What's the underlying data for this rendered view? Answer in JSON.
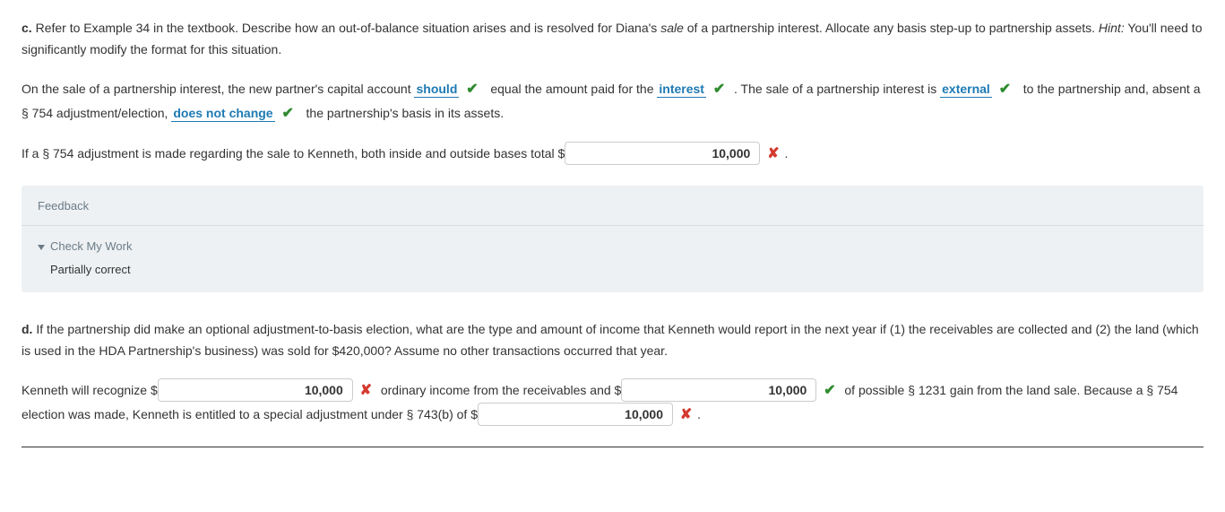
{
  "c": {
    "label": "c.",
    "prompt_start": "Refer to Example 34 in the textbook. Describe how an out-of-balance situation arises and is resolved for Diana's ",
    "sale_word": "sale",
    "prompt_mid": " of a partnership interest. Allocate any basis step-up to partnership assets. ",
    "hint_label": "Hint:",
    "hint_text": " You'll need to significantly modify the format for this situation.",
    "ans": {
      "t1": "On the sale of a partnership interest, the new partner's capital account ",
      "dd1": "should",
      "t2": "equal the amount paid for the ",
      "dd2": "interest",
      "t3": ". The sale of a partnership interest is ",
      "dd3": "external",
      "t4": "to the partnership and, absent a § 754 adjustment/election, ",
      "dd4": "does not change",
      "t5": "the partnership's basis in its assets."
    },
    "line2": {
      "t1": "If a § 754 adjustment is made regarding the sale to Kenneth, both inside and outside bases total $",
      "val": "10,000",
      "period": "."
    }
  },
  "feedback": {
    "title": "Feedback",
    "check": "Check My Work",
    "status": "Partially correct"
  },
  "d": {
    "label": "d.",
    "prompt": "If the partnership did make an optional adjustment-to-basis election, what are the type and amount of income that Kenneth would report in the next year if (1) the receivables are collected and (2) the land (which is used in the HDA Partnership's business) was sold for $420,000? Assume no other transactions occurred that year.",
    "ans": {
      "t1": "Kenneth will recognize $",
      "v1": "10,000",
      "t2": "ordinary income from the receivables and $",
      "v2": "10,000",
      "t3": "of possible § 1231 gain from the land sale. Because a § 754 election was made, Kenneth is entitled to a special adjustment under § 743(b) of $",
      "v3": "10,000",
      "period": "."
    }
  },
  "marks": {
    "check": "✔",
    "cross": "✘"
  }
}
